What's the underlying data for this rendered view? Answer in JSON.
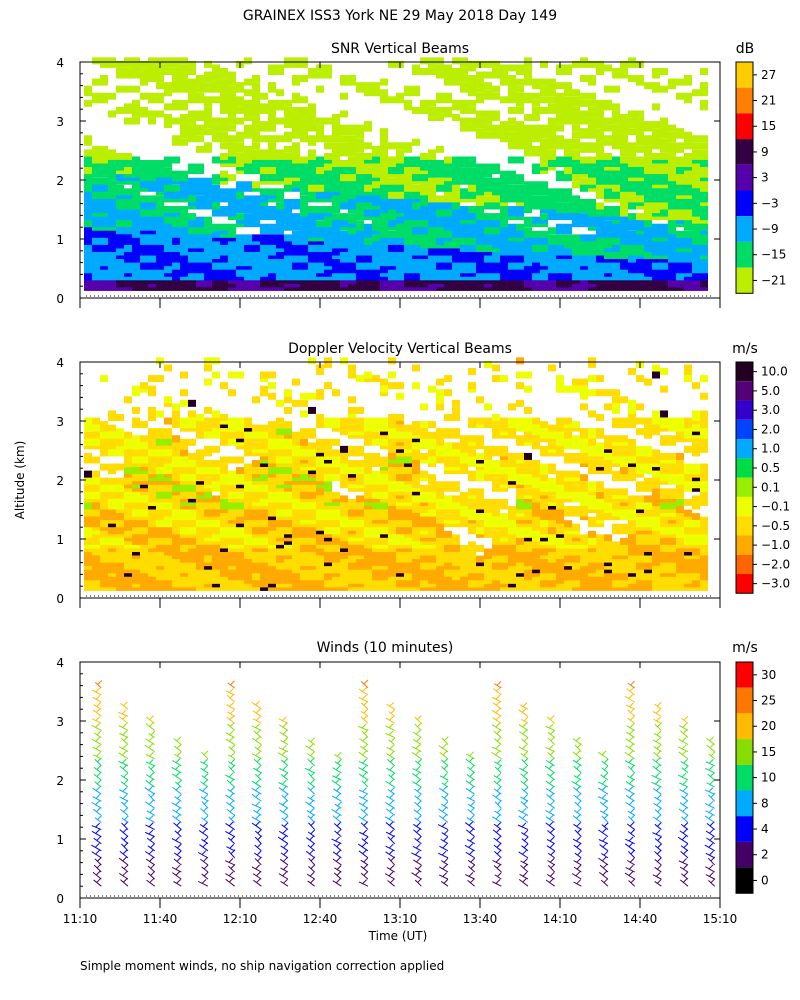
{
  "title": "GRAINEX ISS3 York NE  29 May 2018 Day 149",
  "ylabel": "Altitude (km)",
  "xlabel": "Time (UT)",
  "footnote": "Simple moment winds, no ship navigation correction applied",
  "x_ticks": [
    "11:10",
    "11:40",
    "12:10",
    "12:40",
    "13:10",
    "13:40",
    "14:10",
    "14:40",
    "15:10"
  ],
  "y_ticks": [
    "0",
    "1",
    "2",
    "3",
    "4"
  ],
  "chart_data": [
    {
      "type": "heatmap",
      "title": "SNR Vertical Beams",
      "unit": "dB",
      "xlim": [
        "11:10",
        "15:10"
      ],
      "ylim": [
        0,
        4
      ],
      "colorbar": {
        "labels": [
          "27",
          "21",
          "15",
          "9",
          "3",
          "−3",
          "−9",
          "−15",
          "−21"
        ],
        "colors": [
          "#ffcc00",
          "#ff8000",
          "#ff0000",
          "#330044",
          "#5500aa",
          "#0000ff",
          "#00aaff",
          "#00dd66",
          "#bbee00"
        ]
      },
      "description_layers": [
        {
          "altitude_km": [
            0.1,
            0.3
          ],
          "level": "9 to 15"
        },
        {
          "altitude_km": [
            0.3,
            1.2
          ],
          "level": "-3 to 9"
        },
        {
          "altitude_km": [
            1.2,
            2.3
          ],
          "level": "-15 to -3"
        },
        {
          "altitude_km": [
            2.3,
            4.0
          ],
          "level": "-21 to -15"
        }
      ]
    },
    {
      "type": "heatmap",
      "title": "Doppler Velocity Vertical Beams",
      "unit": "m/s",
      "xlim": [
        "11:10",
        "15:10"
      ],
      "ylim": [
        0,
        4
      ],
      "colorbar": {
        "labels": [
          "10.0",
          "5.0",
          "3.0",
          "2.0",
          "1.0",
          "0.5",
          "0.1",
          "−0.1",
          "−0.5",
          "−1.0",
          "−2.0",
          "−3.0"
        ],
        "colors": [
          "#220022",
          "#550077",
          "#3300cc",
          "#0044ff",
          "#00aaff",
          "#00dd44",
          "#99ee00",
          "#eeff00",
          "#ffdd00",
          "#ffaa00",
          "#ff6600",
          "#ff0000"
        ]
      }
    },
    {
      "type": "barbs",
      "title": "Winds (10 minutes)",
      "unit": "m/s",
      "xlim": [
        "11:10",
        "15:10"
      ],
      "ylim": [
        0,
        4
      ],
      "colorbar": {
        "labels": [
          "30",
          "25",
          "20",
          "15",
          "10",
          "8",
          "4",
          "2",
          "0"
        ],
        "colors": [
          "#ff0000",
          "#ff7700",
          "#ffbb00",
          "#88dd00",
          "#00dd66",
          "#00aaff",
          "#0000ff",
          "#440066",
          "#000000"
        ]
      },
      "profile_times": [
        "11:18",
        "11:28",
        "11:38",
        "11:48",
        "11:58",
        "12:08",
        "12:18",
        "12:28",
        "12:38",
        "12:48",
        "12:58",
        "13:08",
        "13:18",
        "13:28",
        "13:38",
        "13:48",
        "13:58",
        "14:08",
        "14:18",
        "14:28",
        "14:38",
        "14:48",
        "14:58",
        "15:08"
      ]
    }
  ]
}
